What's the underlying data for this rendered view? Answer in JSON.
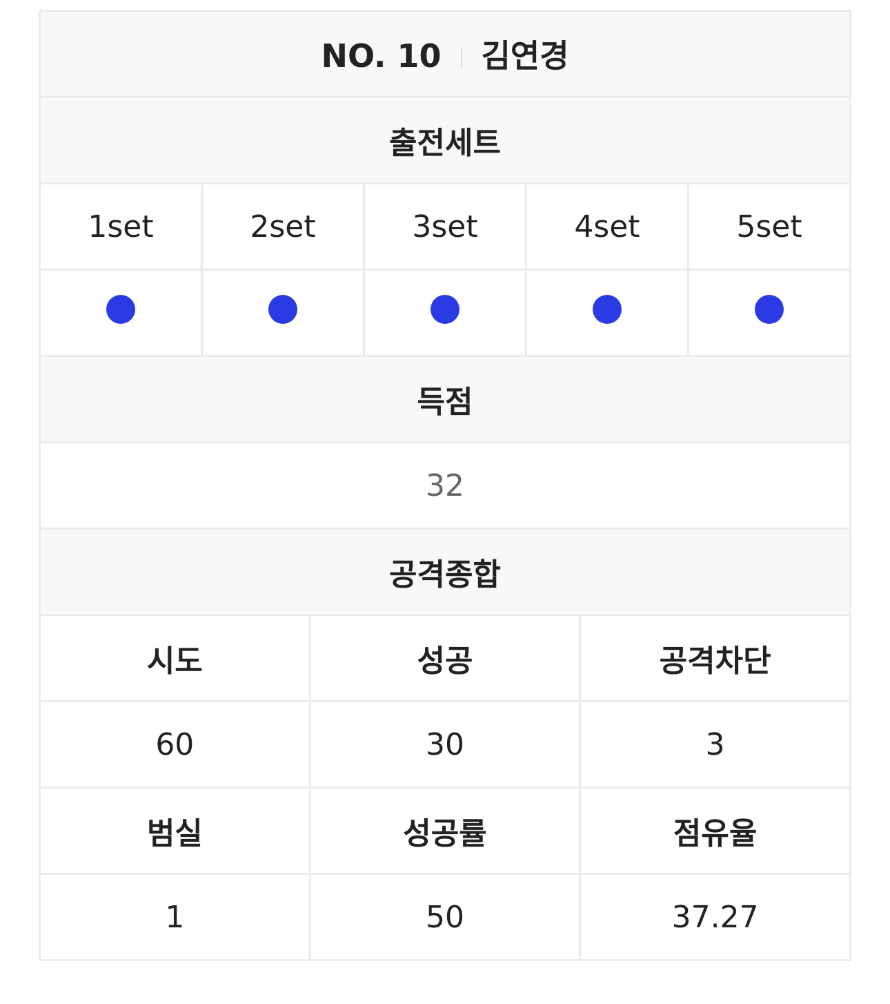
{
  "player": {
    "number_label": "NO. 10",
    "name": "김연경"
  },
  "sets": {
    "title": "출전세트",
    "labels": [
      "1set",
      "2set",
      "3set",
      "4set",
      "5set"
    ],
    "played": [
      true,
      true,
      true,
      true,
      true
    ],
    "dot_color": "#2b3be3",
    "dot_icon": "filled-circle"
  },
  "score": {
    "title": "득점",
    "value": "32"
  },
  "attack": {
    "title": "공격종합",
    "row1_headers": [
      "시도",
      "성공",
      "공격차단"
    ],
    "row1_values": [
      "60",
      "30",
      "3"
    ],
    "row2_headers": [
      "범실",
      "성공률",
      "점유율"
    ],
    "row2_values": [
      "1",
      "50",
      "37.27"
    ]
  }
}
